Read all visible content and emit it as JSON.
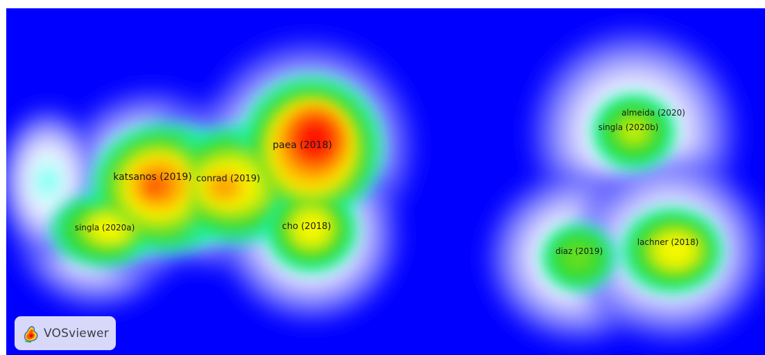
{
  "app": {
    "logo_text": "VOSviewer",
    "logo_icon": "vosviewer-logo-icon"
  },
  "map": {
    "type": "density-visualization",
    "colors": {
      "background": "#0000ff",
      "low": "#00ffff",
      "mid": "#22dd22",
      "high": "#ffff00",
      "peak": "#ff0000"
    },
    "items": [
      {
        "label": "paea (2018)",
        "density": 1.0
      },
      {
        "label": "katsanos (2019)",
        "density": 0.85
      },
      {
        "label": "conrad (2019)",
        "density": 0.75
      },
      {
        "label": "cho (2018)",
        "density": 0.6
      },
      {
        "label": "singla (2020a)",
        "density": 0.45
      },
      {
        "label": "almeida (2020)",
        "density": 0.5
      },
      {
        "label": "singla (2020b)",
        "density": 0.5
      },
      {
        "label": "diaz (2019)",
        "density": 0.45
      },
      {
        "label": "lachner (2018)",
        "density": 0.6
      }
    ]
  }
}
